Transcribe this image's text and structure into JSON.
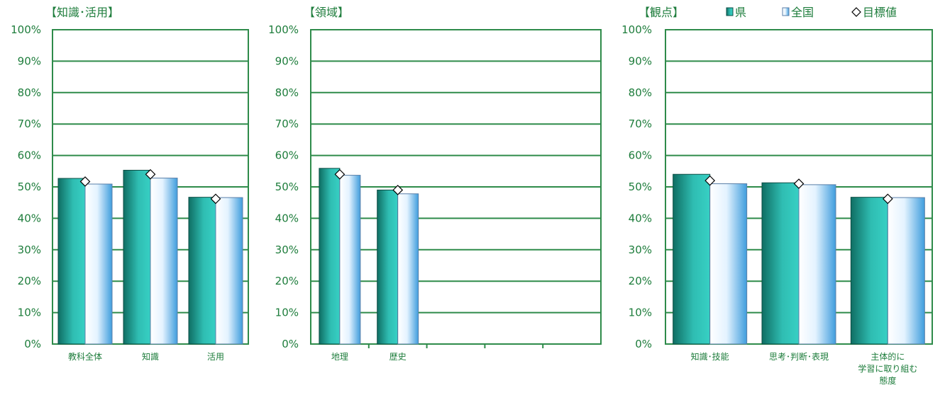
{
  "legend": {
    "pref": "県",
    "national": "全国",
    "target": "目標値"
  },
  "chart_data": [
    {
      "type": "bar",
      "title": "【知識･活用】",
      "categories": [
        "教科全体",
        "知識",
        "活用"
      ],
      "series": [
        {
          "name": "県",
          "values": [
            52.7,
            55.3,
            46.7
          ]
        },
        {
          "name": "全国",
          "values": [
            50.9,
            52.8,
            46.6
          ]
        }
      ],
      "markers": {
        "name": "目標値",
        "values": [
          51.7,
          54.0,
          46.2
        ]
      },
      "yticks": [
        "0%",
        "10%",
        "20%",
        "30%",
        "40%",
        "50%",
        "60%",
        "70%",
        "80%",
        "90%",
        "100%"
      ],
      "ylim": [
        0,
        100
      ],
      "colors": {
        "pref": "#2aa8a0",
        "national": "#e6f4ff"
      }
    },
    {
      "type": "bar",
      "title": "【領域】",
      "categories": [
        "地理",
        "歴史",
        "",
        "",
        ""
      ],
      "series": [
        {
          "name": "県",
          "values": [
            55.9,
            49.0,
            null,
            null,
            null
          ]
        },
        {
          "name": "全国",
          "values": [
            53.7,
            47.8,
            null,
            null,
            null
          ]
        }
      ],
      "markers": {
        "name": "目標値",
        "values": [
          54.0,
          49.0,
          null,
          null,
          null
        ]
      },
      "yticks": [
        "0%",
        "10%",
        "20%",
        "30%",
        "40%",
        "50%",
        "60%",
        "70%",
        "80%",
        "90%",
        "100%"
      ],
      "ylim": [
        0,
        100
      ],
      "colors": {
        "pref": "#2aa8a0",
        "national": "#e6f4ff"
      }
    },
    {
      "type": "bar",
      "title": "【観点】",
      "categories": [
        "知識･技能",
        "思考･判断･表現",
        "主体的に\n学習に取り組む\n態度"
      ],
      "series": [
        {
          "name": "県",
          "values": [
            54.0,
            51.3,
            46.7
          ]
        },
        {
          "name": "全国",
          "values": [
            51.0,
            50.7,
            46.6
          ]
        }
      ],
      "markers": {
        "name": "目標値",
        "values": [
          52.0,
          51.0,
          46.2
        ]
      },
      "yticks": [
        "0%",
        "10%",
        "20%",
        "30%",
        "40%",
        "50%",
        "60%",
        "70%",
        "80%",
        "90%",
        "100%"
      ],
      "ylim": [
        0,
        100
      ],
      "colors": {
        "pref": "#2aa8a0",
        "national": "#e6f4ff"
      }
    }
  ]
}
